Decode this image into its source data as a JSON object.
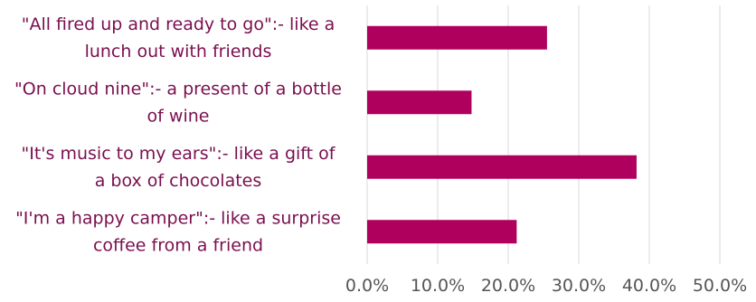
{
  "chart_data": {
    "type": "bar",
    "orientation": "horizontal",
    "title": "",
    "xlabel": "",
    "ylabel": "",
    "categories": [
      [
        "\"All fired up and ready to go\":- like a",
        "lunch out with friends"
      ],
      [
        "\"On cloud nine\":- a present of a bottle",
        "of wine"
      ],
      [
        "\"It's music to my ears\":- like a gift of",
        "a box of chocolates"
      ],
      [
        "\"I'm a happy camper\":- like a surprise",
        "coffee from a friend"
      ]
    ],
    "values": [
      25.5,
      14.8,
      38.2,
      21.2
    ],
    "xlim": [
      0,
      50
    ],
    "xticks": [
      "0.0%",
      "10.0%",
      "20.0%",
      "30.0%",
      "40.0%",
      "50.0%"
    ],
    "grid": true,
    "legend": "none",
    "colors": {
      "bar": "#B0005E",
      "label_text": "#7A0F4F",
      "tick_text": "#555555",
      "gridline": "#D9D9D9"
    }
  }
}
